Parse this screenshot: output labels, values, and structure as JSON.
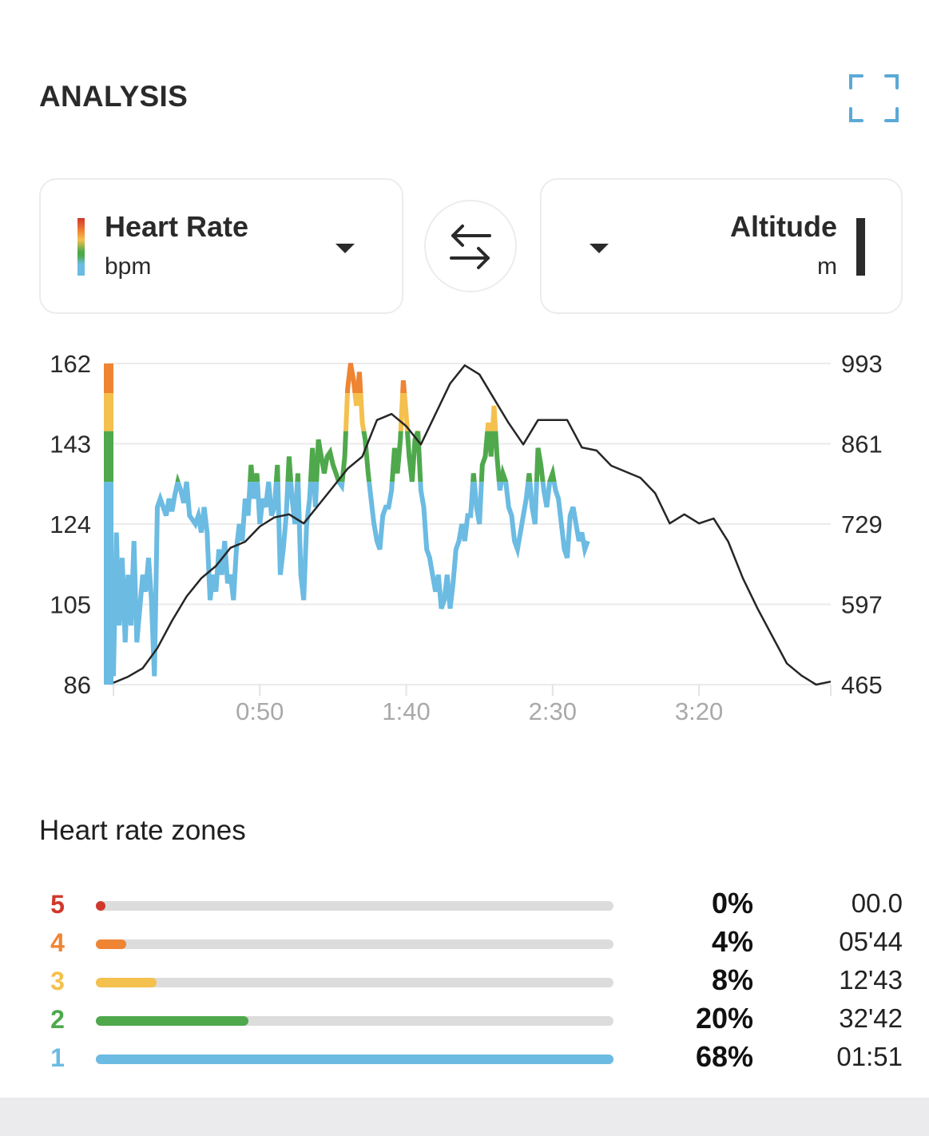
{
  "header": {
    "title": "ANALYSIS",
    "expand_icon": "expand-icon",
    "accent_color": "#5aa9d6"
  },
  "selectors": {
    "left": {
      "name": "Heart Rate",
      "unit": "bpm",
      "legend": "zone-gradient"
    },
    "swap_icon": "swap-arrows-icon",
    "right": {
      "name": "Altitude",
      "unit": "m",
      "legend": "dark-line"
    }
  },
  "chart_data": {
    "type": "line",
    "title": "",
    "xlabel": "",
    "x_ticks": [
      "0:50",
      "1:40",
      "2:30",
      "3:20"
    ],
    "x_tick_minutes": [
      50,
      100,
      150,
      200
    ],
    "xlim_minutes": [
      0,
      245
    ],
    "y_left": {
      "label": "bpm",
      "ticks": [
        "162",
        "143",
        "124",
        "105",
        "86"
      ],
      "range": [
        86,
        162
      ]
    },
    "y_right": {
      "label": "m",
      "ticks": [
        "993",
        "861",
        "729",
        "597",
        "465"
      ],
      "range": [
        465,
        993
      ]
    },
    "grid": true,
    "zone_thresholds_bpm": [
      134,
      146,
      155,
      162
    ],
    "zone_colors": [
      "#6bbbe2",
      "#4fa94c",
      "#f4c04e",
      "#ef8433",
      "#d0382b"
    ],
    "series": [
      {
        "name": "Heart Rate",
        "unit": "bpm",
        "x": [
          0,
          1,
          2,
          3,
          4,
          5,
          6,
          7,
          8,
          9,
          10,
          11,
          12,
          13,
          14,
          15,
          16,
          17,
          18,
          19,
          20,
          21,
          22,
          23,
          24,
          25,
          26,
          27,
          28,
          29,
          30,
          31,
          32,
          33,
          34,
          35,
          36,
          37,
          38,
          39,
          40,
          41,
          42,
          43,
          44,
          45,
          46,
          47,
          48,
          49,
          50,
          51,
          52,
          53,
          54,
          55,
          56,
          57,
          58,
          59,
          60,
          61,
          62,
          63,
          64,
          65,
          66,
          67,
          68,
          69,
          70,
          71,
          72,
          73,
          74,
          75,
          76,
          77,
          78,
          79,
          80,
          81,
          82,
          83,
          84,
          85,
          86,
          87,
          88,
          89,
          90,
          91,
          92,
          93,
          94,
          95,
          96,
          97,
          98,
          99,
          100,
          101,
          102,
          103,
          104,
          105,
          106,
          107,
          108,
          109,
          110,
          111,
          112,
          113,
          114,
          115,
          116,
          117,
          118,
          119,
          120,
          121,
          122,
          123,
          124,
          125,
          126,
          127,
          128,
          129,
          130,
          131,
          132,
          133,
          134,
          135,
          136,
          137,
          138,
          139,
          140,
          141,
          142,
          143,
          144,
          145,
          146,
          147,
          148,
          149,
          150,
          151,
          152,
          153,
          154,
          155,
          156,
          157,
          158,
          159,
          160,
          161,
          162
        ],
        "values": [
          88,
          122,
          100,
          116,
          96,
          112,
          100,
          120,
          96,
          104,
          112,
          108,
          116,
          106,
          88,
          128,
          130,
          128,
          126,
          130,
          127,
          131,
          134,
          132,
          129,
          134,
          126,
          125,
          124,
          126,
          122,
          128,
          122,
          106,
          112,
          108,
          118,
          112,
          120,
          110,
          112,
          106,
          118,
          124,
          120,
          130,
          126,
          138,
          130,
          136,
          124,
          130,
          128,
          134,
          126,
          128,
          138,
          112,
          118,
          126,
          140,
          130,
          124,
          136,
          112,
          106,
          124,
          130,
          142,
          128,
          144,
          140,
          136,
          140,
          141,
          138,
          136,
          134,
          133,
          140,
          156,
          162,
          158,
          152,
          160,
          148,
          144,
          136,
          130,
          124,
          120,
          118,
          126,
          128,
          128,
          132,
          142,
          136,
          144,
          158,
          150,
          140,
          134,
          144,
          146,
          132,
          128,
          118,
          116,
          112,
          108,
          112,
          104,
          106,
          112,
          104,
          110,
          118,
          120,
          124,
          120,
          126,
          126,
          136,
          128,
          124,
          138,
          140,
          148,
          140,
          152,
          140,
          132,
          136,
          134,
          128,
          126,
          120,
          118,
          122,
          126,
          130,
          136,
          128,
          124,
          142,
          138,
          132,
          128,
          134,
          136,
          132,
          130,
          124,
          118,
          116,
          126,
          128,
          124,
          120,
          122,
          118,
          120
        ]
      },
      {
        "name": "Altitude",
        "unit": "m",
        "x": [
          0,
          5,
          10,
          15,
          20,
          25,
          30,
          35,
          40,
          45,
          50,
          55,
          60,
          65,
          70,
          75,
          80,
          85,
          90,
          95,
          100,
          105,
          110,
          115,
          120,
          125,
          130,
          135,
          140,
          145,
          150,
          155,
          160,
          165,
          170,
          175,
          180,
          185,
          190,
          195,
          200,
          205,
          210,
          215,
          220,
          225,
          230,
          235,
          240,
          245
        ],
        "values": [
          468,
          478,
          492,
          525,
          570,
          610,
          640,
          660,
          690,
          700,
          725,
          740,
          745,
          730,
          760,
          790,
          820,
          840,
          900,
          910,
          890,
          860,
          910,
          960,
          990,
          975,
          935,
          895,
          860,
          900,
          900,
          900,
          855,
          850,
          825,
          815,
          805,
          780,
          730,
          745,
          730,
          738,
          700,
          640,
          590,
          545,
          500,
          480,
          465,
          470
        ]
      }
    ]
  },
  "zones": {
    "title": "Heart rate zones",
    "items": [
      {
        "zone": "5",
        "percent_label": "0%",
        "fraction": 0.0,
        "time": "00.0",
        "color": "#d0382b"
      },
      {
        "zone": "4",
        "percent_label": "4%",
        "fraction": 0.04,
        "time": "05'44",
        "color": "#ef8433"
      },
      {
        "zone": "3",
        "percent_label": "8%",
        "fraction": 0.08,
        "time": "12'43",
        "color": "#f4c04e"
      },
      {
        "zone": "2",
        "percent_label": "20%",
        "fraction": 0.2,
        "time": "32'42",
        "color": "#4fa94c"
      },
      {
        "zone": "1",
        "percent_label": "68%",
        "fraction": 0.68,
        "time": "01:51",
        "color": "#6bbbe2"
      }
    ]
  }
}
